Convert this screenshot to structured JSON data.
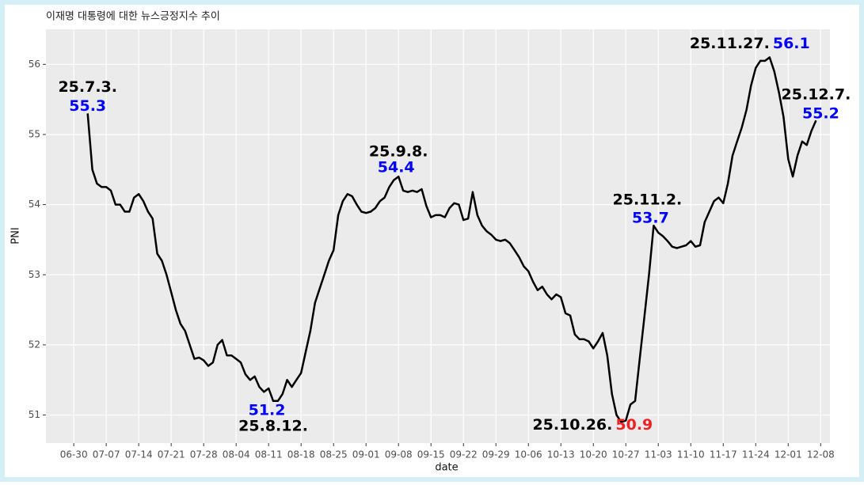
{
  "chart_data": {
    "type": "line",
    "title": "이재명 대통령에 대한 뉴스긍정지수 추이",
    "x_label": "date",
    "y_label": "PNI",
    "color": "#000000",
    "x": [
      "07-03",
      "07-04",
      "07-05",
      "07-06",
      "07-07",
      "07-08",
      "07-09",
      "07-10",
      "07-11",
      "07-12",
      "07-13",
      "07-14",
      "07-15",
      "07-16",
      "07-17",
      "07-18",
      "07-19",
      "07-20",
      "07-21",
      "07-22",
      "07-23",
      "07-24",
      "07-25",
      "07-26",
      "07-27",
      "07-28",
      "07-29",
      "07-30",
      "07-31",
      "08-01",
      "08-02",
      "08-03",
      "08-04",
      "08-05",
      "08-06",
      "08-07",
      "08-08",
      "08-09",
      "08-10",
      "08-11",
      "08-12",
      "08-13",
      "08-14",
      "08-15",
      "08-16",
      "08-17",
      "08-18",
      "08-19",
      "08-20",
      "08-21",
      "08-22",
      "08-23",
      "08-24",
      "08-25",
      "08-26",
      "08-27",
      "08-28",
      "08-29",
      "08-30",
      "08-31",
      "09-01",
      "09-02",
      "09-03",
      "09-04",
      "09-05",
      "09-06",
      "09-07",
      "09-08",
      "09-09",
      "09-10",
      "09-11",
      "09-12",
      "09-13",
      "09-14",
      "09-15",
      "09-16",
      "09-17",
      "09-18",
      "09-19",
      "09-20",
      "09-21",
      "09-22",
      "09-23",
      "09-24",
      "09-25",
      "09-26",
      "09-27",
      "09-28",
      "09-29",
      "09-30",
      "10-01",
      "10-02",
      "10-03",
      "10-04",
      "10-05",
      "10-06",
      "10-07",
      "10-08",
      "10-09",
      "10-10",
      "10-11",
      "10-12",
      "10-13",
      "10-14",
      "10-15",
      "10-16",
      "10-17",
      "10-18",
      "10-19",
      "10-20",
      "10-21",
      "10-22",
      "10-23",
      "10-24",
      "10-25",
      "10-26",
      "10-27",
      "10-28",
      "10-29",
      "10-30",
      "10-31",
      "11-01",
      "11-02",
      "11-03",
      "11-04",
      "11-05",
      "11-06",
      "11-07",
      "11-08",
      "11-09",
      "11-10",
      "11-11",
      "11-12",
      "11-13",
      "11-14",
      "11-15",
      "11-16",
      "11-17",
      "11-18",
      "11-19",
      "11-20",
      "11-21",
      "11-22",
      "11-23",
      "11-24",
      "11-25",
      "11-26",
      "11-27",
      "11-28",
      "11-29",
      "11-30",
      "12-01",
      "12-02",
      "12-03",
      "12-04",
      "12-05",
      "12-06",
      "12-07"
    ],
    "values": [
      55.3,
      54.5,
      54.3,
      54.25,
      54.25,
      54.2,
      54.0,
      54.0,
      53.9,
      53.9,
      54.1,
      54.15,
      54.05,
      53.9,
      53.8,
      53.3,
      53.2,
      53.0,
      52.75,
      52.5,
      52.3,
      52.2,
      52.0,
      51.8,
      51.82,
      51.78,
      51.7,
      51.75,
      52.0,
      52.07,
      51.85,
      51.85,
      51.8,
      51.75,
      51.58,
      51.5,
      51.55,
      51.4,
      51.33,
      51.38,
      51.2,
      51.2,
      51.3,
      51.5,
      51.4,
      51.5,
      51.6,
      51.9,
      52.2,
      52.6,
      52.8,
      53.0,
      53.2,
      53.35,
      53.85,
      54.05,
      54.15,
      54.12,
      54.0,
      53.9,
      53.88,
      53.9,
      53.95,
      54.05,
      54.1,
      54.25,
      54.35,
      54.4,
      54.2,
      54.18,
      54.2,
      54.18,
      54.22,
      53.98,
      53.82,
      53.85,
      53.85,
      53.82,
      53.95,
      54.02,
      54.0,
      53.78,
      53.8,
      54.18,
      53.85,
      53.7,
      53.62,
      53.57,
      53.5,
      53.48,
      53.5,
      53.45,
      53.35,
      53.25,
      53.12,
      53.05,
      52.9,
      52.78,
      52.83,
      52.72,
      52.65,
      52.72,
      52.68,
      52.45,
      52.42,
      52.15,
      52.08,
      52.08,
      52.05,
      51.95,
      52.05,
      52.17,
      51.85,
      51.3,
      51.0,
      50.9,
      50.92,
      51.15,
      51.2,
      51.8,
      52.4,
      53.0,
      53.7,
      53.6,
      53.55,
      53.48,
      53.4,
      53.38,
      53.4,
      53.42,
      53.48,
      53.4,
      53.42,
      53.75,
      53.9,
      54.05,
      54.1,
      54.02,
      54.3,
      54.7,
      54.9,
      55.1,
      55.35,
      55.7,
      55.95,
      56.05,
      56.05,
      56.1,
      55.9,
      55.6,
      55.25,
      54.65,
      54.4,
      54.7,
      54.9,
      54.85,
      55.05,
      55.2
    ],
    "xlim": [
      "06-24",
      "12-10"
    ],
    "xticks": [
      "06-30",
      "07-07",
      "07-14",
      "07-21",
      "07-28",
      "08-04",
      "08-11",
      "08-18",
      "08-25",
      "09-01",
      "09-08",
      "09-15",
      "09-22",
      "09-29",
      "10-06",
      "10-13",
      "10-20",
      "10-27",
      "11-03",
      "11-10",
      "11-17",
      "11-24",
      "12-01",
      "12-08"
    ],
    "ylim": [
      50.6,
      56.5
    ],
    "yticks": [
      51,
      52,
      53,
      54,
      55,
      56
    ],
    "grid": true,
    "annotations": [
      {
        "label": "25.7.3.",
        "value": 55.3,
        "x": "07-03",
        "value_color": "#0000ff"
      },
      {
        "label": "25.8.12.",
        "value": 51.2,
        "x": "08-12",
        "value_color": "#0000ff"
      },
      {
        "label": "25.9.8.",
        "value": 54.4,
        "x": "09-08",
        "value_color": "#0000ff"
      },
      {
        "label": "25.10.26.",
        "value": 50.9,
        "x": "10-26",
        "value_color": "#ee2222"
      },
      {
        "label": "25.11.2.",
        "value": 53.7,
        "x": "11-02",
        "value_color": "#0000ff"
      },
      {
        "label": "25.11.27.",
        "value": 56.1,
        "x": "11-27",
        "value_color": "#0000ff"
      },
      {
        "label": "25.12.7.",
        "value": 55.2,
        "x": "12-07",
        "value_color": "#0000ff"
      }
    ]
  }
}
